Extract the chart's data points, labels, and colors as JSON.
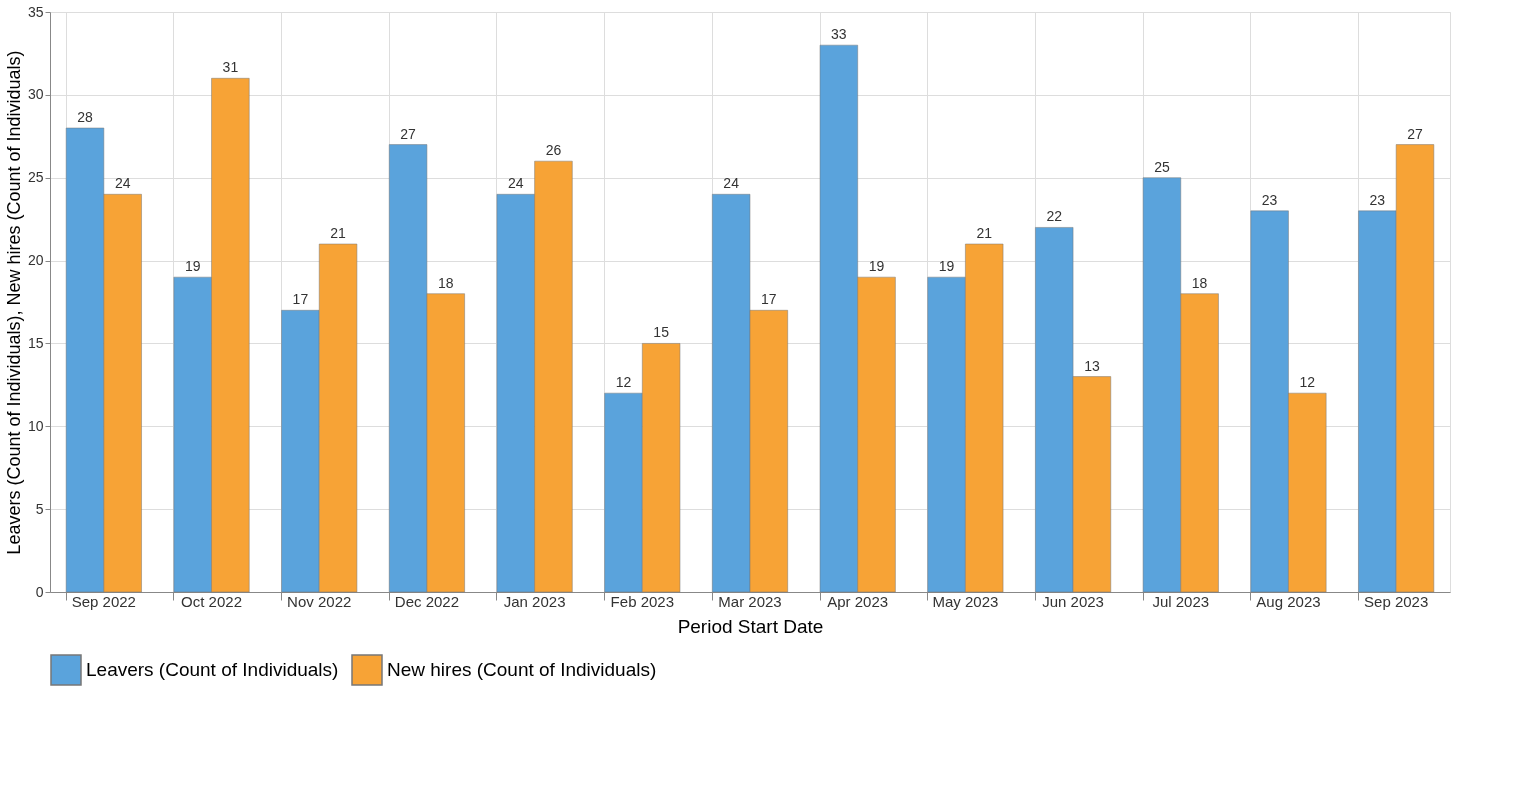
{
  "chart_data": {
    "type": "bar",
    "xlabel": "Period Start Date",
    "ylabel": "Leavers (Count of Individuals), New hires (Count of Individuals)",
    "categories": [
      "Sep 2022",
      "Oct 2022",
      "Nov 2022",
      "Dec 2022",
      "Jan 2023",
      "Feb 2023",
      "Mar 2023",
      "Apr 2023",
      "May 2023",
      "Jun 2023",
      "Jul 2023",
      "Aug 2023",
      "Sep 2023"
    ],
    "series": [
      {
        "name": "Leavers (Count of Individuals)",
        "color": "#5aa3dc",
        "values": [
          28,
          19,
          17,
          27,
          24,
          12,
          24,
          33,
          19,
          22,
          25,
          23,
          23
        ]
      },
      {
        "name": "New hires (Count of Individuals)",
        "color": "#f7a336",
        "values": [
          24,
          31,
          21,
          18,
          26,
          15,
          17,
          19,
          21,
          13,
          18,
          12,
          27
        ]
      }
    ],
    "ylim": [
      0,
      35
    ],
    "yticks": [
      0,
      5,
      10,
      15,
      20,
      25,
      30,
      35
    ],
    "grid": true,
    "legend": "bottom left",
    "data_labels": true
  }
}
